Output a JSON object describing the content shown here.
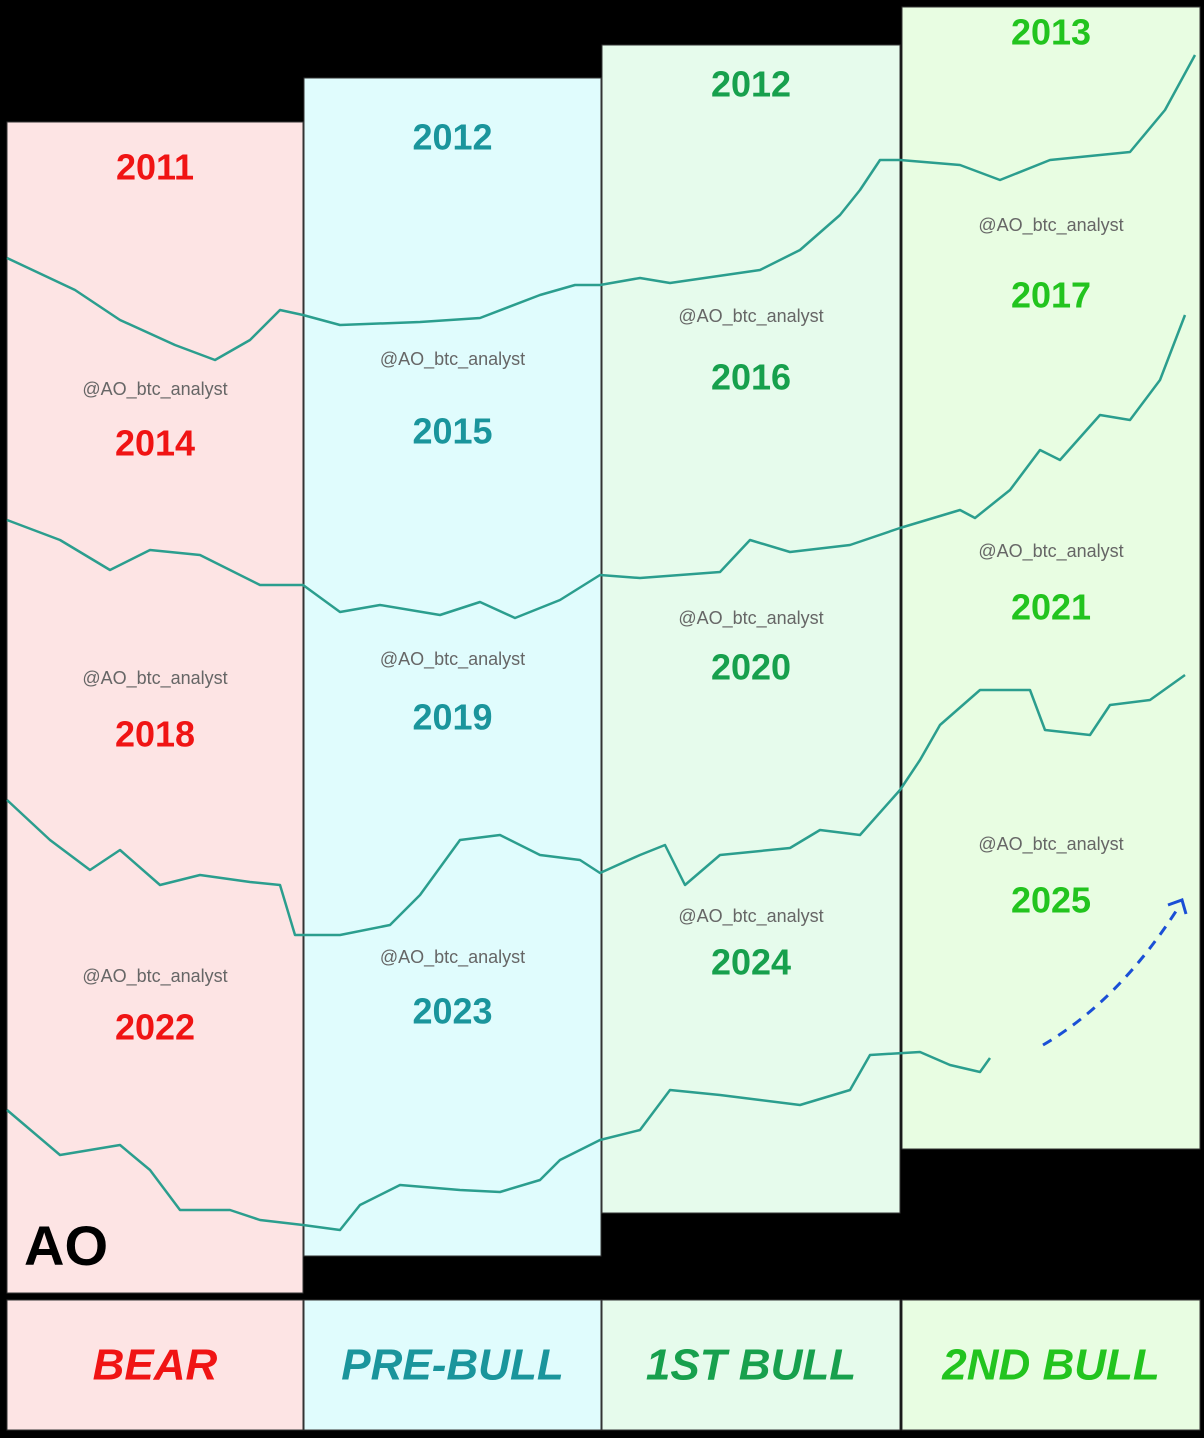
{
  "brand": "AO",
  "columns": [
    {
      "phase": "BEAR",
      "color": "#f01414",
      "fill": "#fde4e4",
      "years": [
        "2011",
        "2014",
        "2018",
        "2022"
      ],
      "watermarks": [
        "@AO_btc_analyst",
        "@AO_btc_analyst",
        "@AO_btc_analyst"
      ]
    },
    {
      "phase": "PRE-BULL",
      "color": "#1a959c",
      "fill": "#e0fcfd",
      "years": [
        "2012",
        "2015",
        "2019",
        "2023"
      ],
      "watermarks": [
        "@AO_btc_analyst",
        "@AO_btc_analyst",
        "@AO_btc_analyst"
      ]
    },
    {
      "phase": "1ST BULL",
      "color": "#17a04d",
      "fill": "#e6fbec",
      "years": [
        "2012",
        "2016",
        "2020",
        "2024"
      ],
      "watermarks": [
        "@AO_btc_analyst",
        "@AO_btc_analyst",
        "@AO_btc_analyst"
      ]
    },
    {
      "phase": "2ND BULL",
      "color": "#22c41e",
      "fill": "#e8fde2",
      "years": [
        "2013",
        "2017",
        "2021",
        "2025"
      ],
      "watermarks": [
        "@AO_btc_analyst",
        "@AO_btc_analyst",
        "@AO_btc_analyst"
      ]
    }
  ]
}
